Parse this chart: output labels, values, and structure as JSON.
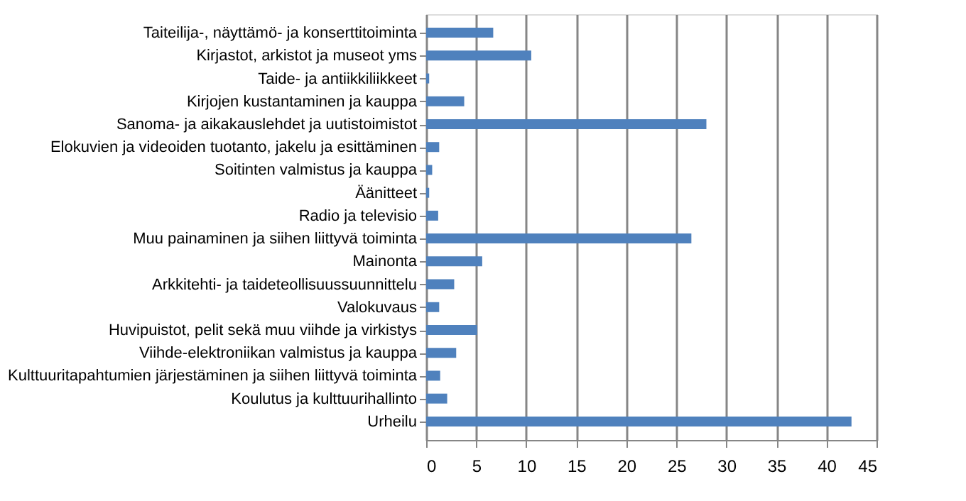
{
  "chart_data": {
    "type": "bar",
    "orientation": "horizontal",
    "categories": [
      "Taiteilija-, näyttämö- ja konserttitoiminta",
      "Kirjastot, arkistot ja museot yms",
      "Taide- ja antiikkiliikkeet",
      "Kirjojen kustantaminen ja kauppa",
      "Sanoma- ja aikakauslehdet ja uutistoimistot",
      "Elokuvien ja videoiden tuotanto, jakelu ja esittäminen",
      "Soitinten valmistus ja kauppa",
      "Äänitteet",
      "Radio ja televisio",
      "Muu painaminen ja siihen liittyvä toiminta",
      "Mainonta",
      "Arkkitehti- ja taideteollisuussuunnittelu",
      "Valokuvaus",
      "Huvipuistot, pelit sekä muu viihde ja virkistys",
      "Viihde-elektroniikan valmistus ja kauppa",
      "Kulttuuritapahtumien järjestäminen ja siihen liittyvä toiminta",
      "Koulutus ja kulttuurihallinto",
      "Urheilu"
    ],
    "values": [
      6.7,
      10.5,
      0.3,
      3.8,
      28,
      1.3,
      0.6,
      0.3,
      1.2,
      26.5,
      5.6,
      2.8,
      1.3,
      5.1,
      3.0,
      1.4,
      2.1,
      42.5
    ],
    "color": "#4f81bd",
    "xlim": [
      0,
      45
    ],
    "xticks": [
      0,
      5,
      10,
      15,
      20,
      25,
      30,
      35,
      40,
      45
    ],
    "grid": "x"
  }
}
